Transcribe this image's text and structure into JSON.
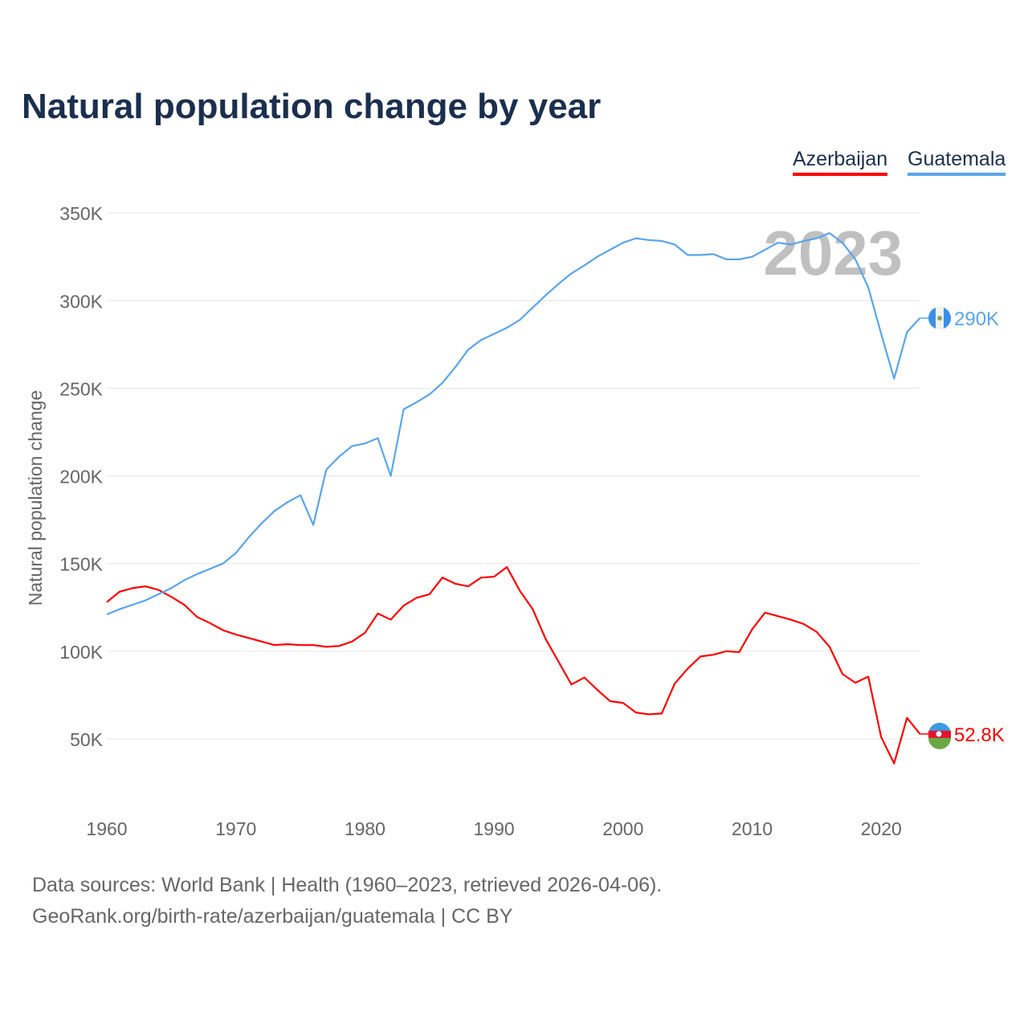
{
  "chart_data": {
    "type": "line",
    "title": "Natural population change by year",
    "xlabel": "",
    "ylabel": "Natural population change",
    "xlim": [
      1960,
      2023
    ],
    "ylim": [
      20,
      360
    ],
    "x_ticks": [
      1960,
      1970,
      1980,
      1990,
      2000,
      2010,
      2020
    ],
    "x_tick_labels": [
      "1960",
      "1970",
      "1980",
      "1990",
      "2000",
      "2010",
      "2020"
    ],
    "y_ticks": [
      50,
      100,
      150,
      200,
      250,
      300,
      350
    ],
    "y_tick_labels": [
      "50K",
      "100K",
      "150K",
      "200K",
      "250K",
      "300K",
      "350K"
    ],
    "grid": true,
    "legend_placement": "top-right",
    "year_watermark": "2023",
    "x": [
      1960,
      1961,
      1962,
      1963,
      1964,
      1965,
      1966,
      1967,
      1968,
      1969,
      1970,
      1971,
      1972,
      1973,
      1974,
      1975,
      1976,
      1977,
      1978,
      1979,
      1980,
      1981,
      1982,
      1983,
      1984,
      1985,
      1986,
      1987,
      1988,
      1989,
      1990,
      1991,
      1992,
      1993,
      1994,
      1995,
      1996,
      1997,
      1998,
      1999,
      2000,
      2001,
      2002,
      2003,
      2004,
      2005,
      2006,
      2007,
      2008,
      2009,
      2010,
      2011,
      2012,
      2013,
      2014,
      2015,
      2016,
      2017,
      2018,
      2019,
      2020,
      2021,
      2022,
      2023
    ],
    "series": [
      {
        "name": "Azerbaijan",
        "color": "#ff0000",
        "end_label": "52.8K",
        "values": [
          128,
          134,
          136,
          137,
          135,
          131,
          126.5,
          119.5,
          116,
          112,
          109.5,
          107.5,
          105.5,
          103.5,
          104,
          103.5,
          103.5,
          102.5,
          103,
          105.5,
          110.5,
          121.5,
          118,
          126,
          130.5,
          132.5,
          142,
          138.5,
          137,
          142,
          142.5,
          148,
          134.5,
          124,
          107,
          94,
          81,
          85,
          78,
          71.5,
          70.5,
          65,
          64,
          64.5,
          81.5,
          90,
          97,
          98,
          100,
          99.5,
          112.5,
          122,
          120,
          118,
          115.5,
          111,
          102.5,
          87,
          82,
          85.5,
          51,
          36,
          62,
          52.8
        ]
      },
      {
        "name": "Guatemala",
        "color": "#5aa5ea",
        "end_label": "290K",
        "values": [
          121,
          124,
          126.5,
          129,
          132.5,
          136,
          140.5,
          144,
          147,
          150,
          156,
          165,
          173,
          180,
          185,
          189,
          172,
          203.5,
          211,
          217,
          218.5,
          221.5,
          200,
          238,
          242,
          246.5,
          253,
          262,
          272,
          277.5,
          281,
          284.5,
          289,
          296,
          303,
          309.5,
          315.5,
          320,
          325,
          329,
          333,
          335.5,
          334.5,
          334,
          332,
          326,
          326,
          326.5,
          323.5,
          323.5,
          325,
          329,
          333,
          332,
          334,
          335.5,
          338.5,
          333,
          323.5,
          307.5,
          281,
          255.5,
          282,
          290
        ]
      }
    ]
  },
  "footer": {
    "line1": "Data sources: World Bank | Health (1960–2023, retrieved 2026-04-06).",
    "line2": "GeoRank.org/birth-rate/azerbaijan/guatemala | CC BY"
  }
}
